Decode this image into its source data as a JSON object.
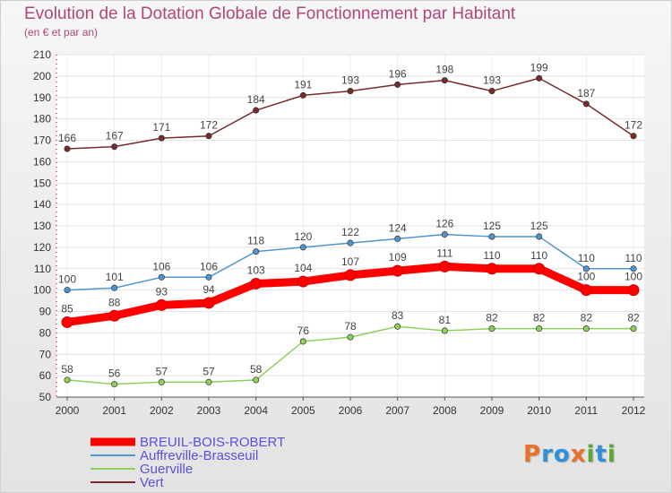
{
  "title": "Evolution de la Dotation Globale de Fonctionnement par Habitant",
  "subtitle": "(en € et par an)",
  "logo": {
    "text": "Proxiti",
    "letters": [
      {
        "ch": "P",
        "color": "#e8702a"
      },
      {
        "ch": "r",
        "color": "#2f8fd8"
      },
      {
        "ch": "o",
        "color": "#2f8fd8"
      },
      {
        "ch": "x",
        "color": "#e8702a"
      },
      {
        "ch": "i",
        "color": "#5aa832"
      },
      {
        "ch": "t",
        "color": "#2f8fd8"
      },
      {
        "ch": "i",
        "color": "#5aa832"
      }
    ]
  },
  "chart_data": {
    "type": "line",
    "title": "Evolution de la Dotation Globale de Fonctionnement par Habitant",
    "subtitle": "(en € et par an)",
    "x": [
      "2000",
      "2001",
      "2002",
      "2003",
      "2004",
      "2005",
      "2006",
      "2007",
      "2008",
      "2009",
      "2010",
      "2011",
      "2012"
    ],
    "ylim": [
      50,
      210
    ],
    "yticks": [
      50,
      60,
      70,
      80,
      90,
      100,
      110,
      120,
      130,
      140,
      150,
      160,
      170,
      180,
      190,
      200,
      210
    ],
    "grid": true,
    "legend_position": "bottom-left",
    "series": [
      {
        "name": "BREUIL-BOIS-ROBERT",
        "color": "#ff0000",
        "label_color": "#5a52d6",
        "values": [
          85,
          88,
          93,
          94,
          103,
          104,
          107,
          109,
          111,
          110,
          110,
          100,
          100
        ]
      },
      {
        "name": "Auffreville-Brasseuil",
        "color": "#4f95d0",
        "label_color": "#5a52d6",
        "values": [
          100,
          101,
          106,
          106,
          118,
          120,
          122,
          124,
          126,
          125,
          125,
          110,
          110
        ]
      },
      {
        "name": "Guerville",
        "color": "#8fd05a",
        "label_color": "#5a52d6",
        "values": [
          58,
          56,
          57,
          57,
          58,
          76,
          78,
          83,
          81,
          82,
          82,
          82,
          82
        ]
      },
      {
        "name": "Vert",
        "color": "#7a2a2a",
        "label_color": "#5a52d6",
        "values": [
          166,
          167,
          171,
          172,
          184,
          191,
          193,
          196,
          198,
          193,
          199,
          187,
          172
        ]
      }
    ]
  }
}
